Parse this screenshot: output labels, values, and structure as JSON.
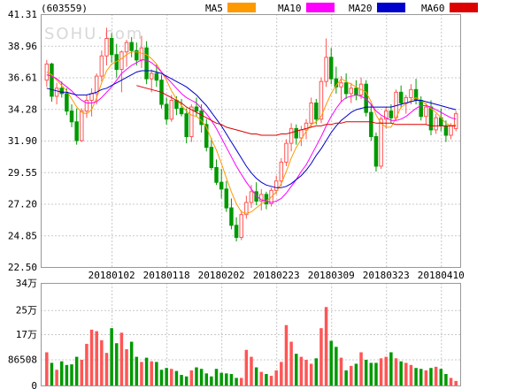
{
  "header": {
    "code": "(603559)"
  },
  "watermark": "SOHU.com",
  "legend": [
    {
      "name": "MA5",
      "color": "#ff9900"
    },
    {
      "name": "MA10",
      "color": "#ff00ff"
    },
    {
      "name": "MA20",
      "color": "#0000cc"
    },
    {
      "name": "MA60",
      "color": "#dd0000"
    }
  ],
  "colors": {
    "up": "#ff5555",
    "down": "#009900",
    "grid": "#c8c8c8",
    "frame": "#999999"
  },
  "chart_data": [
    {
      "type": "candlestick",
      "yticks": [
        "41.31",
        "38.96",
        "36.61",
        "34.28",
        "31.90",
        "29.55",
        "27.20",
        "24.85",
        "22.50"
      ],
      "ylim": [
        22.5,
        41.31
      ],
      "xticks": [
        {
          "label": "20180102",
          "index": 13
        },
        {
          "label": "20180118",
          "index": 24
        },
        {
          "label": "20180202",
          "index": 35
        },
        {
          "label": "20180223",
          "index": 46
        },
        {
          "label": "20180309",
          "index": 57
        },
        {
          "label": "20180323",
          "index": 68
        },
        {
          "label": "20180410",
          "index": 79
        }
      ],
      "ohlc": [
        [
          36.4,
          37.9,
          35.9,
          37.6
        ],
        [
          37.6,
          37.7,
          34.8,
          35.2
        ],
        [
          35.2,
          36.2,
          34.6,
          35.8
        ],
        [
          35.8,
          36.3,
          35.1,
          35.4
        ],
        [
          35.4,
          35.8,
          33.8,
          34.1
        ],
        [
          34.1,
          34.6,
          32.9,
          33.3
        ],
        [
          33.3,
          34.3,
          31.6,
          31.9
        ],
        [
          31.9,
          34.3,
          31.8,
          34.1
        ],
        [
          34.1,
          35.3,
          33.6,
          34.9
        ],
        [
          34.9,
          35.8,
          33.7,
          35.4
        ],
        [
          35.4,
          36.9,
          34.6,
          36.7
        ],
        [
          36.7,
          38.6,
          36.3,
          38.2
        ],
        [
          38.2,
          40.3,
          37.5,
          39.5
        ],
        [
          39.5,
          39.9,
          37.7,
          38.3
        ],
        [
          38.3,
          39.1,
          36.6,
          37.2
        ],
        [
          37.2,
          38.6,
          35.5,
          38.5
        ],
        [
          38.5,
          39.4,
          37.4,
          39.2
        ],
        [
          39.2,
          39.6,
          38.1,
          38.6
        ],
        [
          38.6,
          39.2,
          37.5,
          37.9
        ],
        [
          37.9,
          39.7,
          37.3,
          38.8
        ],
        [
          38.8,
          39.3,
          36.1,
          36.5
        ],
        [
          36.5,
          37.2,
          35.5,
          36.9
        ],
        [
          36.9,
          37.6,
          35.9,
          36.4
        ],
        [
          36.4,
          36.8,
          34.3,
          34.6
        ],
        [
          34.6,
          35.1,
          33.1,
          33.5
        ],
        [
          33.5,
          35.3,
          33.3,
          34.9
        ],
        [
          34.9,
          35.2,
          33.8,
          34.3
        ],
        [
          34.3,
          35.0,
          33.7,
          33.9
        ],
        [
          33.9,
          34.3,
          31.7,
          32.2
        ],
        [
          32.2,
          34.6,
          31.8,
          34.4
        ],
        [
          34.4,
          35.1,
          33.7,
          34.1
        ],
        [
          34.1,
          34.6,
          32.5,
          33.1
        ],
        [
          33.1,
          33.5,
          31.1,
          31.4
        ],
        [
          31.4,
          32.1,
          29.7,
          29.9
        ],
        [
          29.9,
          30.5,
          28.6,
          28.8
        ],
        [
          28.8,
          29.8,
          27.6,
          28.3
        ],
        [
          28.3,
          28.9,
          26.6,
          26.9
        ],
        [
          26.9,
          27.6,
          25.3,
          25.6
        ],
        [
          25.6,
          26.2,
          24.4,
          24.7
        ],
        [
          24.7,
          26.7,
          24.5,
          26.4
        ],
        [
          26.4,
          27.8,
          26.1,
          27.3
        ],
        [
          27.3,
          28.6,
          26.9,
          28.1
        ],
        [
          28.1,
          28.8,
          27.1,
          27.4
        ],
        [
          27.4,
          28.3,
          26.7,
          27.9
        ],
        [
          27.9,
          28.1,
          26.8,
          27.2
        ],
        [
          27.2,
          28.4,
          27.0,
          28.2
        ],
        [
          28.2,
          29.3,
          27.9,
          28.9
        ],
        [
          28.9,
          30.6,
          28.5,
          30.3
        ],
        [
          30.3,
          32.0,
          30.0,
          31.7
        ],
        [
          31.7,
          33.2,
          31.1,
          32.8
        ],
        [
          32.8,
          33.1,
          31.6,
          32.1
        ],
        [
          32.1,
          33.0,
          31.5,
          32.7
        ],
        [
          32.7,
          33.5,
          32.0,
          33.2
        ],
        [
          33.2,
          35.1,
          32.9,
          34.7
        ],
        [
          34.7,
          35.0,
          33.1,
          33.5
        ],
        [
          33.5,
          36.6,
          33.2,
          36.3
        ],
        [
          36.3,
          39.5,
          35.9,
          38.1
        ],
        [
          38.1,
          38.8,
          36.1,
          36.5
        ],
        [
          36.5,
          37.4,
          35.4,
          35.9
        ],
        [
          35.9,
          36.7,
          34.8,
          36.2
        ],
        [
          36.2,
          36.9,
          35.0,
          35.4
        ],
        [
          35.4,
          36.2,
          34.7,
          35.8
        ],
        [
          35.8,
          36.4,
          34.9,
          35.3
        ],
        [
          35.3,
          36.6,
          35.0,
          36.1
        ],
        [
          36.1,
          36.4,
          33.7,
          34.0
        ],
        [
          34.0,
          34.6,
          31.9,
          32.2
        ],
        [
          32.2,
          32.5,
          29.6,
          30.0
        ],
        [
          30.0,
          33.7,
          29.8,
          33.5
        ],
        [
          33.5,
          34.4,
          32.8,
          34.1
        ],
        [
          34.1,
          34.6,
          33.2,
          33.6
        ],
        [
          33.6,
          35.7,
          33.4,
          35.5
        ],
        [
          35.5,
          36.0,
          34.3,
          34.7
        ],
        [
          34.7,
          35.3,
          33.9,
          35.1
        ],
        [
          35.1,
          36.1,
          34.6,
          35.7
        ],
        [
          35.7,
          36.5,
          34.6,
          34.9
        ],
        [
          34.9,
          35.2,
          33.4,
          33.7
        ],
        [
          33.7,
          34.7,
          33.1,
          34.4
        ],
        [
          34.4,
          34.9,
          32.3,
          32.7
        ],
        [
          32.7,
          33.9,
          32.4,
          33.6
        ],
        [
          33.6,
          34.3,
          32.6,
          33.0
        ],
        [
          33.0,
          33.4,
          31.8,
          32.3
        ],
        [
          32.3,
          33.2,
          32.0,
          33.0
        ],
        [
          32.8,
          34.1,
          32.6,
          33.9
        ]
      ],
      "ma": {
        "MA5": [
          37.0,
          36.8,
          36.4,
          36.0,
          35.6,
          35.0,
          34.4,
          34.0,
          33.9,
          34.2,
          35.1,
          36.2,
          37.1,
          37.6,
          37.8,
          38.0,
          38.3,
          38.5,
          38.5,
          38.4,
          38.3,
          38.0,
          37.6,
          37.0,
          36.4,
          35.6,
          35.0,
          34.5,
          34.1,
          33.8,
          33.7,
          33.4,
          32.9,
          32.0,
          31.2,
          30.2,
          29.1,
          28.1,
          27.2,
          26.6,
          26.5,
          26.6,
          26.9,
          27.2,
          27.4,
          27.7,
          28.1,
          28.7,
          29.6,
          30.6,
          31.4,
          32.0,
          32.6,
          33.1,
          33.3,
          33.7,
          34.6,
          35.4,
          36.0,
          36.5,
          36.3,
          36.1,
          35.9,
          35.7,
          35.5,
          34.8,
          33.8,
          33.2,
          32.9,
          32.9,
          33.6,
          34.4,
          34.6,
          34.9,
          35.1,
          34.9,
          34.6,
          34.3,
          34.0,
          33.6,
          33.2,
          33.0,
          33.1
        ],
        "MA10": [
          36.8,
          36.7,
          36.5,
          36.2,
          35.9,
          35.6,
          35.2,
          34.9,
          34.7,
          34.7,
          34.8,
          35.1,
          35.5,
          35.9,
          36.4,
          36.9,
          37.2,
          37.5,
          37.7,
          37.9,
          37.9,
          37.7,
          37.4,
          37.0,
          36.6,
          36.2,
          35.8,
          35.4,
          35.1,
          34.9,
          34.7,
          34.3,
          33.9,
          33.4,
          32.8,
          32.1,
          31.4,
          30.7,
          30.0,
          29.4,
          28.8,
          28.3,
          27.8,
          27.5,
          27.4,
          27.3,
          27.4,
          27.6,
          28.0,
          28.5,
          29.0,
          29.6,
          30.1,
          30.8,
          31.5,
          32.2,
          33.0,
          33.7,
          34.3,
          34.8,
          35.1,
          35.2,
          35.3,
          35.2,
          35.0,
          34.6,
          34.1,
          33.8,
          33.6,
          33.4,
          33.4,
          33.5,
          33.7,
          34.0,
          34.3,
          34.5,
          34.5,
          34.4,
          34.2,
          34.0,
          33.8,
          33.6,
          33.5
        ],
        "MA20": [
          35.8,
          35.7,
          35.6,
          35.5,
          35.5,
          35.4,
          35.3,
          35.3,
          35.3,
          35.4,
          35.5,
          35.7,
          35.8,
          36.0,
          36.2,
          36.4,
          36.6,
          36.8,
          37.0,
          37.1,
          37.1,
          37.1,
          37.0,
          36.9,
          36.7,
          36.5,
          36.3,
          36.1,
          35.9,
          35.6,
          35.3,
          34.9,
          34.5,
          34.0,
          33.5,
          33.0,
          32.4,
          31.8,
          31.2,
          30.6,
          30.0,
          29.5,
          29.1,
          28.8,
          28.6,
          28.5,
          28.4,
          28.4,
          28.5,
          28.7,
          29.0,
          29.3,
          29.7,
          30.2,
          30.8,
          31.3,
          31.9,
          32.5,
          33.0,
          33.4,
          33.7,
          34.0,
          34.2,
          34.3,
          34.4,
          34.4,
          34.4,
          34.4,
          34.4,
          34.4,
          34.5,
          34.6,
          34.7,
          34.8,
          34.9,
          34.9,
          34.8,
          34.7,
          34.6,
          34.5,
          34.4,
          34.3,
          34.2
        ],
        "MA60": [
          null,
          null,
          null,
          null,
          null,
          null,
          null,
          null,
          null,
          null,
          null,
          null,
          null,
          null,
          null,
          null,
          null,
          null,
          36.0,
          35.9,
          35.8,
          35.7,
          35.6,
          35.5,
          35.3,
          35.1,
          34.9,
          34.7,
          34.4,
          34.2,
          34.0,
          33.8,
          33.6,
          33.4,
          33.2,
          33.1,
          32.9,
          32.8,
          32.7,
          32.6,
          32.5,
          32.4,
          32.4,
          32.3,
          32.3,
          32.3,
          32.3,
          32.4,
          32.4,
          32.5,
          32.6,
          32.7,
          32.8,
          32.9,
          33.0,
          33.0,
          33.1,
          33.1,
          33.2,
          33.2,
          33.3,
          33.3,
          33.3,
          33.3,
          33.3,
          33.3,
          33.2,
          33.2,
          33.2,
          33.2,
          33.1,
          33.1,
          33.1,
          33.1,
          33.1,
          33.1,
          33.1,
          33.0,
          33.0,
          33.0,
          33.0,
          33.0,
          33.0
        ]
      }
    },
    {
      "type": "bar",
      "unit_label": "34万",
      "yticks": [
        "25万",
        "17万",
        "86508",
        "0"
      ],
      "ylim": [
        0,
        340000
      ],
      "volume": [
        110000,
        75000,
        52000,
        80000,
        68000,
        70000,
        95000,
        85000,
        138000,
        185000,
        180000,
        150000,
        108000,
        190000,
        140000,
        175000,
        120000,
        145000,
        95000,
        78000,
        92000,
        80000,
        78000,
        52000,
        58000,
        55000,
        48000,
        35000,
        30000,
        50000,
        60000,
        55000,
        40000,
        30000,
        55000,
        42000,
        40000,
        38000,
        25000,
        25000,
        118000,
        95000,
        60000,
        45000,
        38000,
        32000,
        50000,
        78000,
        200000,
        145000,
        105000,
        95000,
        85000,
        72000,
        90000,
        190000,
        260000,
        148000,
        128000,
        92000,
        50000,
        65000,
        72000,
        110000,
        85000,
        75000,
        75000,
        90000,
        95000,
        110000,
        90000,
        80000,
        75000,
        68000,
        58000,
        55000,
        50000,
        58000,
        62000,
        55000,
        38000,
        25000,
        15000
      ]
    }
  ]
}
